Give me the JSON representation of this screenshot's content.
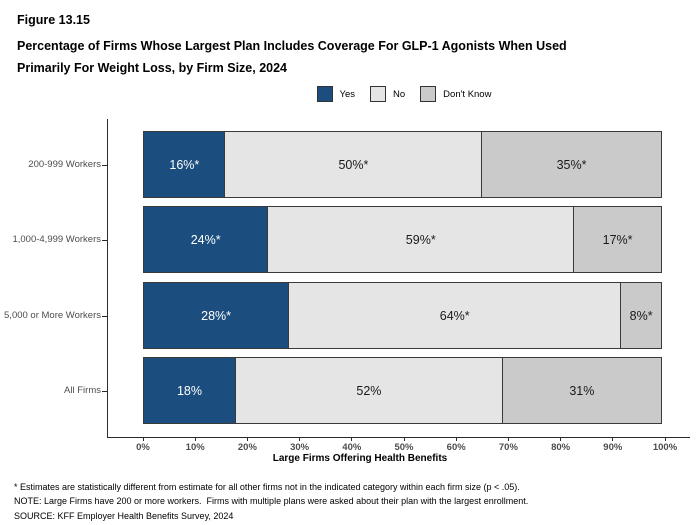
{
  "figure": {
    "label": "Figure 13.15",
    "title_line1": "Percentage of Firms Whose Largest Plan Includes Coverage For GLP-1 Agonists When Used",
    "title_line2": "Primarily For Weight Loss, by Firm Size, 2024"
  },
  "colors": {
    "yes": "#1B4E7E",
    "no": "#E5E5E5",
    "dont_know": "#CACACA",
    "segment_border": "#3A3A3A",
    "axis": "#2B2B2B",
    "axis_text": "#4D4D4D"
  },
  "legend": [
    {
      "label": "Yes",
      "color": "#1B4E7E"
    },
    {
      "label": "No",
      "color": "#E5E5E5"
    },
    {
      "label": "Don't Know",
      "color": "#CACACA"
    }
  ],
  "chart_data": {
    "type": "bar",
    "orientation": "horizontal",
    "stacked": true,
    "categories": [
      "200-999 Workers",
      "1,000-4,999 Workers",
      "5,000 or More Workers",
      "All Firms"
    ],
    "series": [
      {
        "name": "Yes",
        "color": "#1B4E7E",
        "label_color": "#FFFFFF",
        "values": [
          16,
          24,
          28,
          18
        ],
        "labels": [
          "16%*",
          "24%*",
          "28%*",
          "18%"
        ]
      },
      {
        "name": "No",
        "color": "#E5E5E5",
        "label_color": "#1A1A1A",
        "values": [
          50,
          59,
          64,
          52
        ],
        "labels": [
          "50%*",
          "59%*",
          "64%*",
          "52%"
        ]
      },
      {
        "name": "Don't Know",
        "color": "#CACACA",
        "label_color": "#1A1A1A",
        "values": [
          35,
          17,
          8,
          31
        ],
        "labels": [
          "35%*",
          "17%*",
          "8%*",
          "31%"
        ]
      }
    ],
    "xlabel": "Large Firms Offering Health Benefits",
    "x_ticks": [
      "0%",
      "10%",
      "20%",
      "30%",
      "40%",
      "50%",
      "60%",
      "70%",
      "80%",
      "90%",
      "100%"
    ],
    "xlim": [
      0,
      100
    ],
    "grid": false,
    "legend_position": "top-center"
  },
  "footnotes": [
    "* Estimates are statistically different from estimate for all other firms not in the indicated category within each firm size (p < .05).",
    "NOTE: Large Firms have 200 or more workers.  Firms with multiple plans were asked about their plan with the largest enrollment.",
    "SOURCE: KFF Employer Health Benefits Survey, 2024"
  ]
}
